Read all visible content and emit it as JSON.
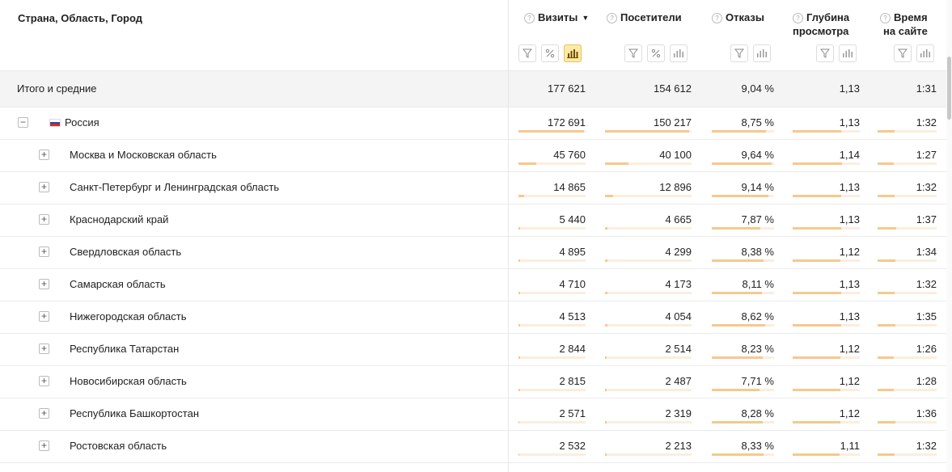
{
  "header": {
    "title": "Страна, Область, Город",
    "columns": [
      {
        "label": "Визиты",
        "sorted": true,
        "sort_arrow": "▼"
      },
      {
        "label": "Посетители"
      },
      {
        "label": "Отказы"
      },
      {
        "label1": "Глубина",
        "label2": "просмотра"
      },
      {
        "label1": "Время",
        "label2": "на сайте"
      }
    ]
  },
  "total": {
    "label": "Итого и средние",
    "visits": "177 621",
    "visitors": "154 612",
    "bounce": "9,04 %",
    "depth": "1,13",
    "time": "1:31"
  },
  "rows": [
    {
      "label": "Россия",
      "expander": "−",
      "visits": "172 691",
      "visitors": "150 217",
      "bounce": "8,75 %",
      "depth": "1,13",
      "time": "1:32",
      "visits_share": 0.97,
      "visitors_share": 0.97,
      "bounce_share": 0.87,
      "depth_share": 0.72,
      "time_share": 0.29
    },
    {
      "label": "Москва и Московская область",
      "expander": "+",
      "visits": "45 760",
      "visitors": "40 100",
      "bounce": "9,64 %",
      "depth": "1,14",
      "time": "1:27",
      "visits_share": 0.26,
      "visitors_share": 0.27,
      "bounce_share": 0.96,
      "depth_share": 0.73,
      "time_share": 0.28
    },
    {
      "label": "Санкт-Петербург и Ленинградская область",
      "expander": "+",
      "visits": "14 865",
      "visitors": "12 896",
      "bounce": "9,14 %",
      "depth": "1,13",
      "time": "1:32",
      "visits_share": 0.09,
      "visitors_share": 0.09,
      "bounce_share": 0.91,
      "depth_share": 0.72,
      "time_share": 0.29
    },
    {
      "label": "Краснодарский край",
      "expander": "+",
      "visits": "5 440",
      "visitors": "4 665",
      "bounce": "7,87 %",
      "depth": "1,13",
      "time": "1:37",
      "visits_share": 0.03,
      "visitors_share": 0.03,
      "bounce_share": 0.78,
      "depth_share": 0.72,
      "time_share": 0.31
    },
    {
      "label": "Свердловская область",
      "expander": "+",
      "visits": "4 895",
      "visitors": "4 299",
      "bounce": "8,38 %",
      "depth": "1,12",
      "time": "1:34",
      "visits_share": 0.03,
      "visitors_share": 0.03,
      "bounce_share": 0.83,
      "depth_share": 0.71,
      "time_share": 0.3
    },
    {
      "label": "Самарская область",
      "expander": "+",
      "visits": "4 710",
      "visitors": "4 173",
      "bounce": "8,11 %",
      "depth": "1,13",
      "time": "1:32",
      "visits_share": 0.03,
      "visitors_share": 0.03,
      "bounce_share": 0.81,
      "depth_share": 0.72,
      "time_share": 0.29
    },
    {
      "label": "Нижегородская область",
      "expander": "+",
      "visits": "4 513",
      "visitors": "4 054",
      "bounce": "8,62 %",
      "depth": "1,13",
      "time": "1:35",
      "visits_share": 0.03,
      "visitors_share": 0.03,
      "bounce_share": 0.86,
      "depth_share": 0.72,
      "time_share": 0.3
    },
    {
      "label": "Республика Татарстан",
      "expander": "+",
      "visits": "2 844",
      "visitors": "2 514",
      "bounce": "8,23 %",
      "depth": "1,12",
      "time": "1:26",
      "visits_share": 0.02,
      "visitors_share": 0.02,
      "bounce_share": 0.82,
      "depth_share": 0.71,
      "time_share": 0.27
    },
    {
      "label": "Новосибирская область",
      "expander": "+",
      "visits": "2 815",
      "visitors": "2 487",
      "bounce": "7,71 %",
      "depth": "1,12",
      "time": "1:28",
      "visits_share": 0.02,
      "visitors_share": 0.02,
      "bounce_share": 0.77,
      "depth_share": 0.71,
      "time_share": 0.28
    },
    {
      "label": "Республика Башкортостан",
      "expander": "+",
      "visits": "2 571",
      "visitors": "2 319",
      "bounce": "8,28 %",
      "depth": "1,12",
      "time": "1:36",
      "visits_share": 0.01,
      "visitors_share": 0.02,
      "bounce_share": 0.82,
      "depth_share": 0.71,
      "time_share": 0.3
    },
    {
      "label": "Ростовская область",
      "expander": "+",
      "visits": "2 532",
      "visitors": "2 213",
      "bounce": "8,33 %",
      "depth": "1,11",
      "time": "1:32",
      "visits_share": 0.01,
      "visitors_share": 0.01,
      "bounce_share": 0.83,
      "depth_share": 0.7,
      "time_share": 0.29
    }
  ],
  "colors": {
    "bar_fill": "#f5c98e",
    "bar_track": "#faeedd",
    "active_tool": "#fde9a6"
  }
}
